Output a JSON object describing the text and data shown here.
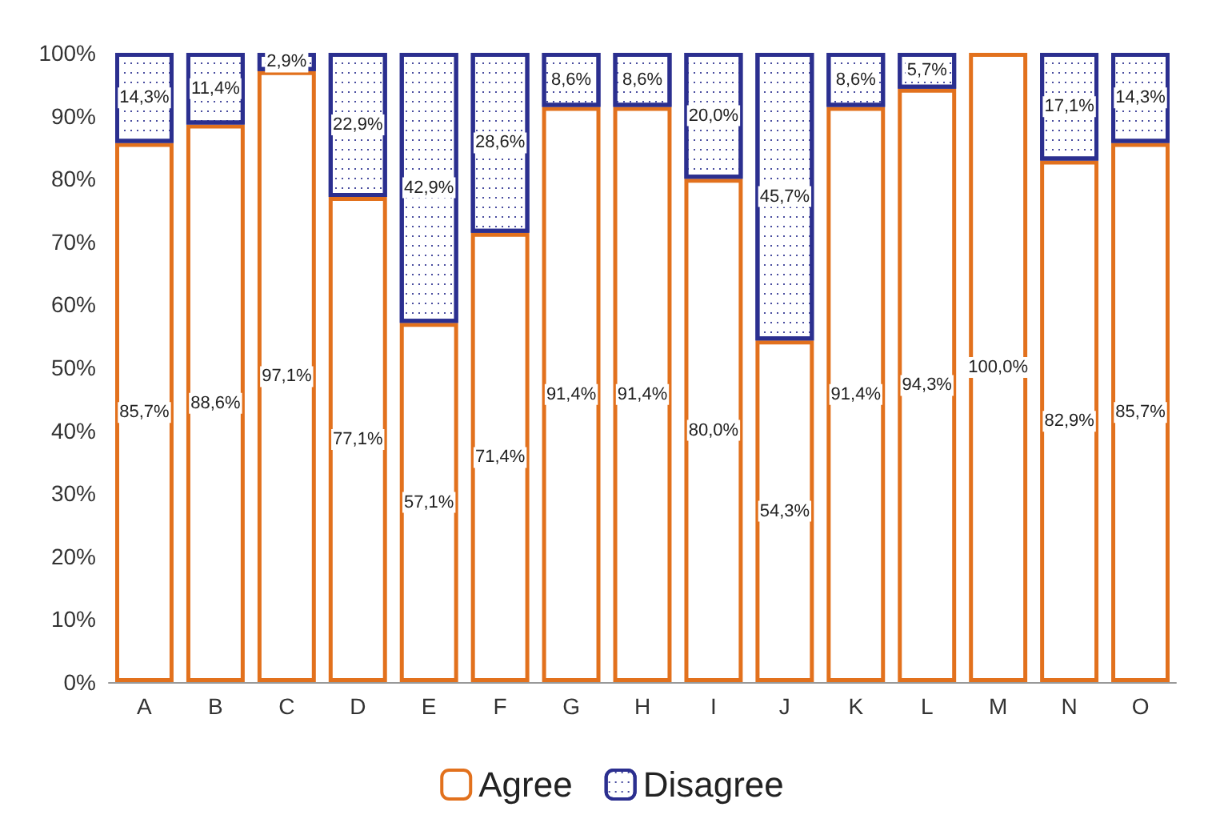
{
  "chart_data": {
    "type": "bar",
    "stacked": true,
    "categories": [
      "A",
      "B",
      "C",
      "D",
      "E",
      "F",
      "G",
      "H",
      "I",
      "J",
      "K",
      "L",
      "M",
      "N",
      "O"
    ],
    "series": [
      {
        "name": "Agree",
        "color": "#e2711d",
        "values": [
          85.7,
          88.6,
          97.1,
          77.1,
          57.1,
          71.4,
          91.4,
          91.4,
          80.0,
          54.3,
          91.4,
          94.3,
          100.0,
          82.9,
          85.7
        ],
        "value_labels": [
          "85,7%",
          "88,6%",
          "97,1%",
          "77,1%",
          "57,1%",
          "71,4%",
          "91,4%",
          "91,4%",
          "80,0%",
          "54,3%",
          "91,4%",
          "94,3%",
          "100,0%",
          "82,9%",
          "85,7%"
        ]
      },
      {
        "name": "Disagree",
        "color": "#2b2f8f",
        "values": [
          14.3,
          11.4,
          2.9,
          22.9,
          42.9,
          28.6,
          8.6,
          8.6,
          20.0,
          45.7,
          8.6,
          5.7,
          null,
          17.1,
          14.3
        ],
        "value_labels": [
          "14,3%",
          "11,4%",
          "2,9%",
          "22,9%",
          "42,9%",
          "28,6%",
          "8,6%",
          "8,6%",
          "20,0%",
          "45,7%",
          "8,6%",
          "5,7%",
          null,
          "17,1%",
          "14,3%"
        ]
      }
    ],
    "ylim": [
      0,
      100
    ],
    "yticks": [
      {
        "value": 0,
        "label": "0%"
      },
      {
        "value": 10,
        "label": "10%"
      },
      {
        "value": 20,
        "label": "20%"
      },
      {
        "value": 30,
        "label": "30%"
      },
      {
        "value": 40,
        "label": "40%"
      },
      {
        "value": 50,
        "label": "50%"
      },
      {
        "value": 60,
        "label": "60%"
      },
      {
        "value": 70,
        "label": "70%"
      },
      {
        "value": 80,
        "label": "80%"
      },
      {
        "value": 90,
        "label": "90%"
      },
      {
        "value": 100,
        "label": "100%"
      }
    ],
    "legend": "bottom"
  }
}
